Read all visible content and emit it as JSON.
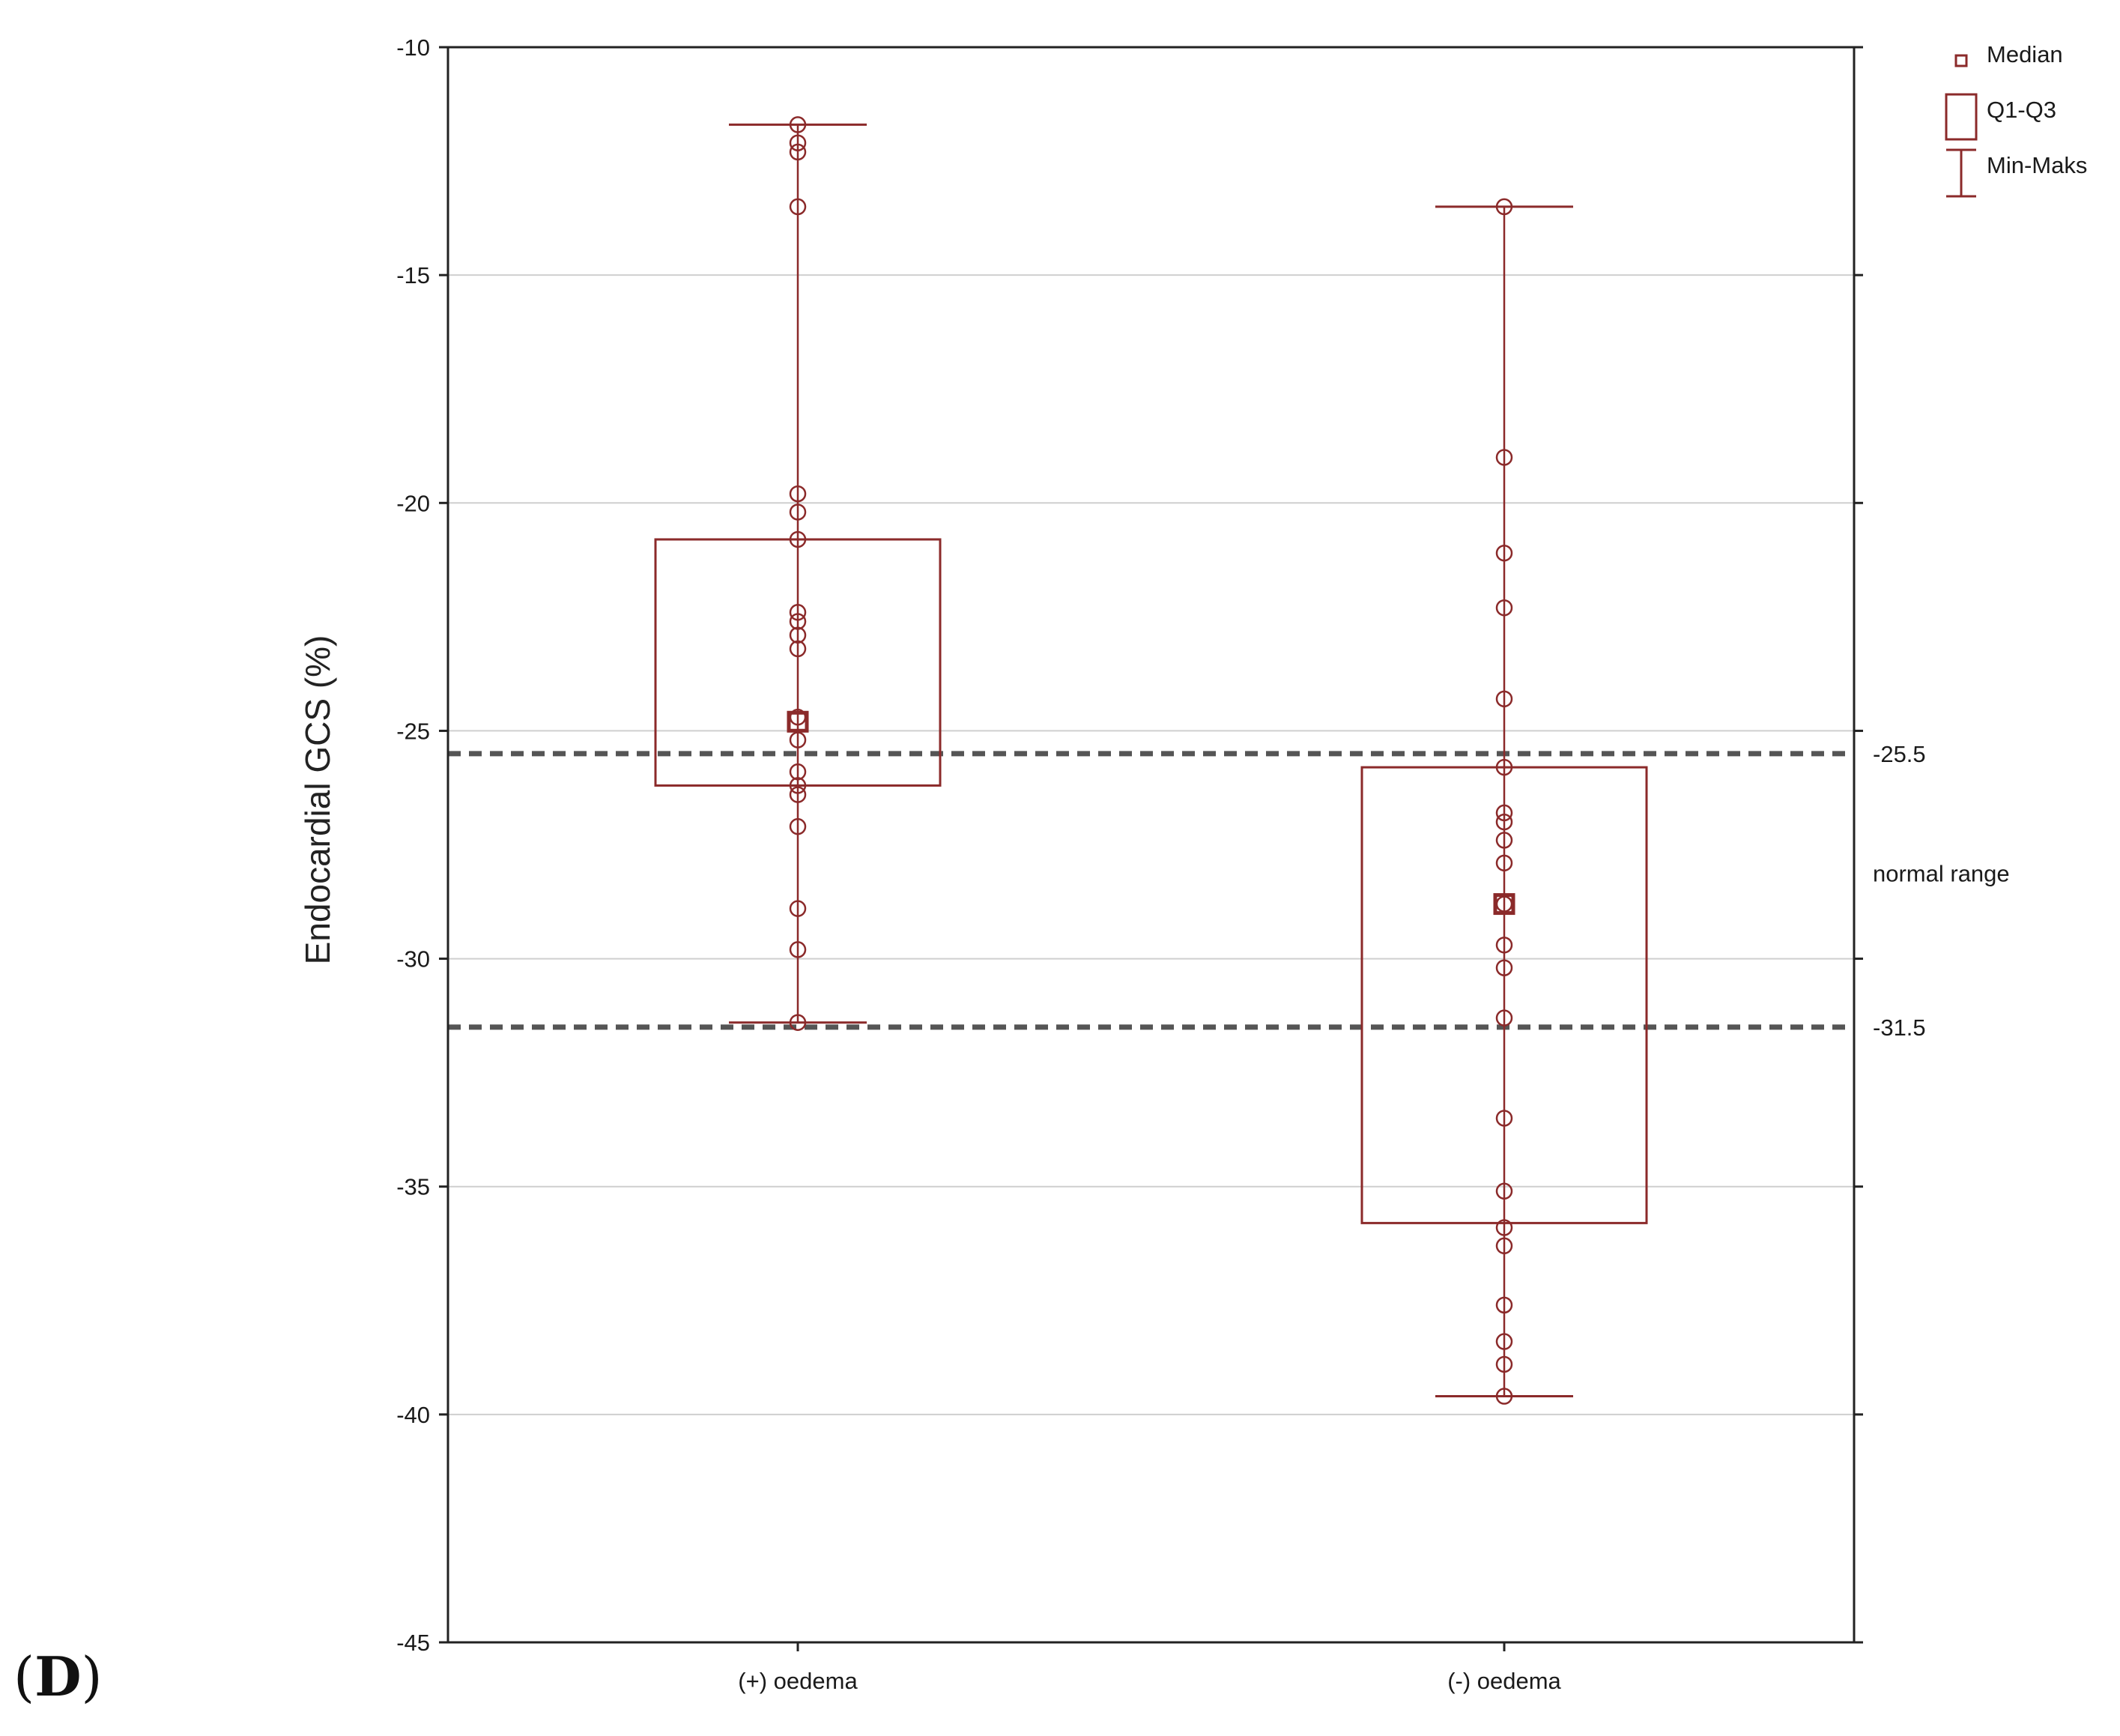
{
  "panel_label": {
    "open": "(",
    "letter": "D",
    "close": ")"
  },
  "colors": {
    "box": "#8b2a2a",
    "grid": "#cfcfcf",
    "reference": "#555555",
    "axis": "#222222"
  },
  "chart_data": {
    "type": "box",
    "title": "",
    "xlabel": "",
    "ylabel": "Endocardial GCS (%)",
    "ylim": [
      -45,
      -10
    ],
    "yticks": [
      -10,
      -15,
      -20,
      -25,
      -30,
      -35,
      -40,
      -45
    ],
    "yticks_labels": [
      "-10",
      "-15",
      "-20",
      "-25",
      "-30",
      "-35",
      "-40",
      "-45"
    ],
    "grid": true,
    "categories": [
      "(+) oedema",
      "(-) oedema"
    ],
    "series": [
      {
        "name": "(+) oedema",
        "median": -24.8,
        "q1": -26.2,
        "q3": -20.8,
        "min": -31.4,
        "max": -11.7,
        "points": [
          -11.7,
          -12.1,
          -12.3,
          -13.5,
          -19.8,
          -20.2,
          -20.8,
          -22.4,
          -22.6,
          -22.9,
          -23.2,
          -24.7,
          -25.2,
          -25.9,
          -26.2,
          -26.4,
          -27.1,
          -28.9,
          -29.8,
          -31.4
        ]
      },
      {
        "name": "(-) oedema",
        "median": -28.8,
        "q1": -35.8,
        "q3": -25.8,
        "min": -39.6,
        "max": -13.5,
        "points": [
          -13.5,
          -19.0,
          -21.1,
          -22.3,
          -24.3,
          -25.8,
          -26.8,
          -27.0,
          -27.4,
          -27.9,
          -28.8,
          -29.7,
          -30.2,
          -31.3,
          -33.5,
          -35.1,
          -35.9,
          -36.3,
          -37.6,
          -38.4,
          -38.9,
          -39.6
        ]
      }
    ],
    "reference_lines": [
      {
        "value": -25.5,
        "label": "-25.5",
        "style": "dashed"
      },
      {
        "value": -31.5,
        "label": "-31.5",
        "style": "dashed"
      }
    ],
    "annotations": [
      {
        "text": "normal range",
        "between": [
          -25.5,
          -31.5
        ]
      }
    ],
    "legend": {
      "placement": "top-right",
      "entries": [
        {
          "symbol": "square",
          "label": "Median"
        },
        {
          "symbol": "box",
          "label": "Q1-Q3"
        },
        {
          "symbol": "whisker",
          "label": "Min-Maks"
        }
      ]
    }
  }
}
